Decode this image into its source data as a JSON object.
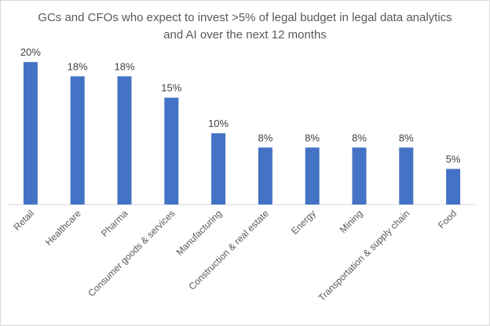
{
  "chart_data": {
    "type": "bar",
    "title": "GCs and CFOs who expect to  invest >5% of legal budget in legal data analytics and AI over the next 12 months",
    "categories": [
      "Retail",
      "Healthcare",
      "Pharma",
      "Consumer goods & services",
      "Manufacturing",
      "Construction & real estate",
      "Energy",
      "Mining",
      "Transportation & supply chain",
      "Food"
    ],
    "values": [
      20,
      18,
      18,
      15,
      10,
      8,
      8,
      8,
      8,
      5
    ],
    "data_labels": [
      "20%",
      "18%",
      "18%",
      "15%",
      "10%",
      "8%",
      "8%",
      "8%",
      "8%",
      "5%"
    ],
    "unit": "%",
    "xlabel": "",
    "ylabel": "",
    "ylim": [
      0,
      22
    ],
    "grid": false,
    "legend": "none",
    "colors": {
      "bar": "#4472C4",
      "axis": "#d9d9d9",
      "text": "#595959"
    }
  }
}
